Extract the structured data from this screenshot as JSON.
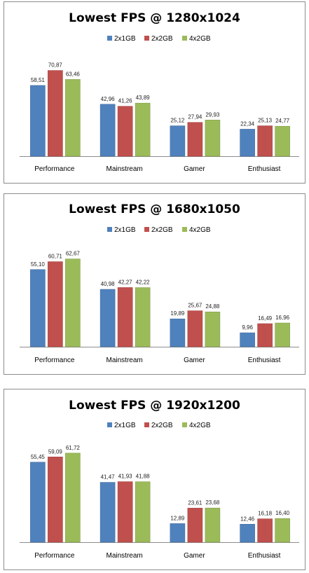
{
  "colors": {
    "2x1GB": "#4f81bd",
    "2x2GB": "#c0504d",
    "4x2GB": "#9bbb59"
  },
  "chart_data": [
    {
      "type": "bar",
      "title": "Lowest FPS @ 1280x1024",
      "categories": [
        "Performance",
        "Mainstream",
        "Gamer",
        "Enthusiast"
      ],
      "series": [
        {
          "name": "2x1GB",
          "values": [
            58.51,
            42.96,
            25.12,
            22.34
          ],
          "labels": [
            "58,51",
            "42,96",
            "25,12",
            "22,34"
          ]
        },
        {
          "name": "2x2GB",
          "values": [
            70.87,
            41.26,
            27.94,
            25.13
          ],
          "labels": [
            "70,87",
            "41,26",
            "27,94",
            "25,13"
          ]
        },
        {
          "name": "4x2GB",
          "values": [
            63.46,
            43.89,
            29.93,
            24.77
          ],
          "labels": [
            "63,46",
            "43,89",
            "29,93",
            "24,77"
          ]
        }
      ],
      "legend_position": "top",
      "grid": false,
      "ylim": [
        0,
        80
      ]
    },
    {
      "type": "bar",
      "title": "Lowest FPS @ 1680x1050",
      "categories": [
        "Performance",
        "Mainstream",
        "Gamer",
        "Enthusiast"
      ],
      "series": [
        {
          "name": "2x1GB",
          "values": [
            55.1,
            40.98,
            19.89,
            9.96
          ],
          "labels": [
            "55,10",
            "40,98",
            "19,89",
            "9,96"
          ]
        },
        {
          "name": "2x2GB",
          "values": [
            60.71,
            42.27,
            25.67,
            16.49
          ],
          "labels": [
            "60,71",
            "42,27",
            "25,67",
            "16,49"
          ]
        },
        {
          "name": "4x2GB",
          "values": [
            62.67,
            42.22,
            24.88,
            16.96
          ],
          "labels": [
            "62,67",
            "42,22",
            "24,88",
            "16,96"
          ]
        }
      ],
      "legend_position": "top",
      "grid": false,
      "ylim": [
        0,
        70
      ]
    },
    {
      "type": "bar",
      "title": "Lowest FPS @ 1920x1200",
      "categories": [
        "Performance",
        "Mainstream",
        "Gamer",
        "Enthusiast"
      ],
      "series": [
        {
          "name": "2x1GB",
          "values": [
            55.45,
            41.47,
            12.89,
            12.46
          ],
          "labels": [
            "55,45",
            "41,47",
            "12,89",
            "12,46"
          ]
        },
        {
          "name": "2x2GB",
          "values": [
            59.09,
            41.93,
            23.61,
            16.18
          ],
          "labels": [
            "59,09",
            "41,93",
            "23,61",
            "16,18"
          ]
        },
        {
          "name": "4x2GB",
          "values": [
            61.72,
            41.88,
            23.68,
            16.4
          ],
          "labels": [
            "61,72",
            "41,88",
            "23,68",
            "16,40"
          ]
        }
      ],
      "legend_position": "top",
      "grid": false,
      "ylim": [
        0,
        70
      ]
    }
  ]
}
